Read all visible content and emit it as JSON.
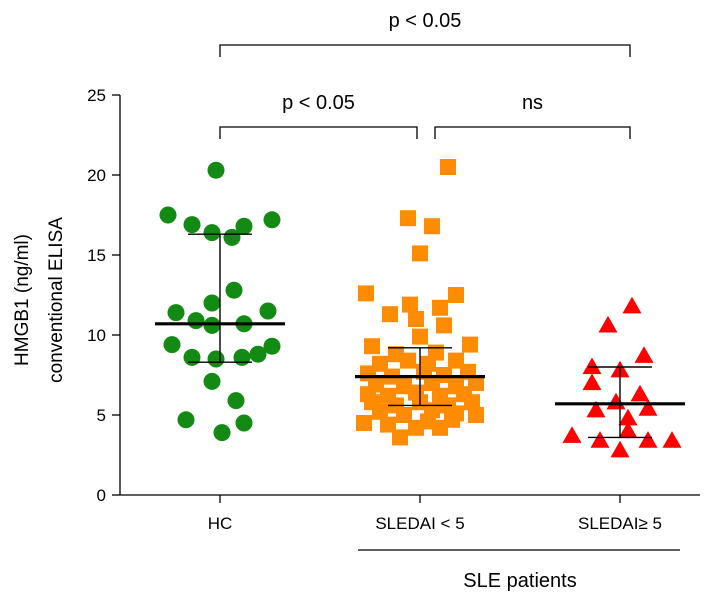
{
  "chart_data": {
    "type": "scatter",
    "ylabel_line1": "HMGB1 (ng/ml)",
    "ylabel_line2": "conventional ELISA",
    "ylim": [
      0,
      25
    ],
    "yticks": [
      0,
      5,
      10,
      15,
      20,
      25
    ],
    "categories": [
      "HC",
      "SLEDAI < 5",
      "SLEDAI≥ 5"
    ],
    "group_label": "SLE patients",
    "colors": {
      "HC": "#138A13",
      "SLEDAI < 5": "#FF8C00",
      "SLEDAI≥ 5": "#FF0000"
    },
    "series": [
      {
        "category": "HC",
        "marker": "circle",
        "median": 10.7,
        "q1": 8.3,
        "q3": 16.3,
        "points": [
          [
            -0.02,
            20.3
          ],
          [
            -0.26,
            17.5
          ],
          [
            -0.14,
            16.9
          ],
          [
            0.12,
            16.8
          ],
          [
            0.26,
            17.2
          ],
          [
            -0.04,
            16.4
          ],
          [
            0.06,
            16.1
          ],
          [
            0.07,
            12.8
          ],
          [
            -0.04,
            12.0
          ],
          [
            -0.22,
            11.4
          ],
          [
            0.24,
            11.5
          ],
          [
            -0.12,
            10.9
          ],
          [
            -0.04,
            10.6
          ],
          [
            0.12,
            10.7
          ],
          [
            -0.24,
            9.4
          ],
          [
            0.26,
            9.3
          ],
          [
            -0.14,
            8.6
          ],
          [
            -0.02,
            8.5
          ],
          [
            0.11,
            8.6
          ],
          [
            0.19,
            8.8
          ],
          [
            -0.04,
            7.1
          ],
          [
            0.08,
            5.9
          ],
          [
            -0.17,
            4.7
          ],
          [
            0.01,
            3.9
          ],
          [
            0.12,
            4.5
          ]
        ]
      },
      {
        "category": "SLEDAI < 5",
        "marker": "square",
        "median": 7.4,
        "q1": 5.6,
        "q3": 9.2,
        "points": [
          [
            0.14,
            20.5
          ],
          [
            -0.06,
            17.3
          ],
          [
            0.06,
            16.8
          ],
          [
            0.0,
            15.1
          ],
          [
            -0.27,
            12.6
          ],
          [
            0.18,
            12.5
          ],
          [
            -0.05,
            11.9
          ],
          [
            -0.15,
            11.3
          ],
          [
            0.1,
            11.7
          ],
          [
            -0.02,
            11.0
          ],
          [
            0.12,
            10.6
          ],
          [
            -0.24,
            9.3
          ],
          [
            0.0,
            9.9
          ],
          [
            0.25,
            9.4
          ],
          [
            -0.12,
            8.8
          ],
          [
            0.08,
            8.9
          ],
          [
            -0.2,
            8.2
          ],
          [
            -0.06,
            8.4
          ],
          [
            0.04,
            8.2
          ],
          [
            0.18,
            8.4
          ],
          [
            -0.26,
            7.6
          ],
          [
            -0.14,
            7.4
          ],
          [
            0.02,
            7.7
          ],
          [
            0.12,
            7.5
          ],
          [
            0.24,
            7.7
          ],
          [
            -0.22,
            6.9
          ],
          [
            -0.08,
            6.8
          ],
          [
            0.06,
            7.0
          ],
          [
            0.18,
            6.8
          ],
          [
            0.28,
            7.0
          ],
          [
            -0.26,
            6.3
          ],
          [
            -0.16,
            6.2
          ],
          [
            -0.02,
            6.4
          ],
          [
            0.1,
            6.2
          ],
          [
            0.22,
            6.3
          ],
          [
            -0.24,
            5.8
          ],
          [
            -0.12,
            5.6
          ],
          [
            0.0,
            5.8
          ],
          [
            0.14,
            5.6
          ],
          [
            0.26,
            5.8
          ],
          [
            -0.2,
            5.2
          ],
          [
            -0.08,
            5.0
          ],
          [
            0.06,
            5.3
          ],
          [
            0.18,
            5.1
          ],
          [
            0.28,
            5.0
          ],
          [
            -0.28,
            4.5
          ],
          [
            -0.16,
            4.4
          ],
          [
            0.04,
            4.6
          ],
          [
            0.16,
            4.7
          ],
          [
            0.1,
            4.2
          ],
          [
            -0.02,
            4.2
          ],
          [
            -0.1,
            3.6
          ]
        ]
      },
      {
        "category": "SLEDAI≥ 5",
        "marker": "triangle",
        "median": 5.7,
        "q1": 3.6,
        "q3": 8.0,
        "points": [
          [
            0.06,
            11.8
          ],
          [
            -0.06,
            10.6
          ],
          [
            0.12,
            8.7
          ],
          [
            -0.14,
            8.0
          ],
          [
            0.0,
            7.8
          ],
          [
            -0.14,
            7.0
          ],
          [
            0.1,
            6.3
          ],
          [
            -0.02,
            5.8
          ],
          [
            0.14,
            5.4
          ],
          [
            -0.12,
            5.3
          ],
          [
            0.04,
            4.8
          ],
          [
            -0.24,
            3.7
          ],
          [
            -0.1,
            3.4
          ],
          [
            0.14,
            3.4
          ],
          [
            0.26,
            3.4
          ],
          [
            0.0,
            2.8
          ],
          [
            0.04,
            4.0
          ]
        ]
      }
    ],
    "comparisons": [
      {
        "from": 1,
        "to": 2,
        "label": "p < 0.05",
        "level": 1
      },
      {
        "from": 2,
        "to": 3,
        "label": "ns",
        "level": 1
      },
      {
        "from": 1,
        "to": 3,
        "label": "p < 0.05",
        "level": 2
      }
    ]
  }
}
